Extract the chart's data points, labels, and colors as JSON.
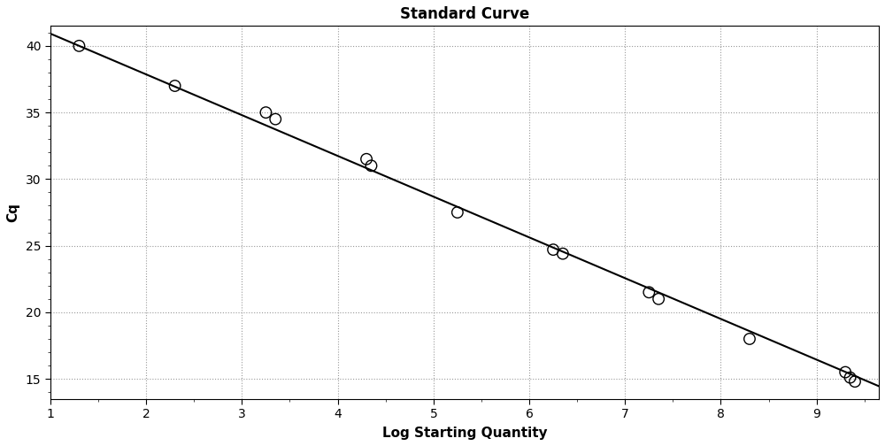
{
  "title": "Standard Curve",
  "xlabel": "Log Starting Quantity",
  "ylabel": "Cq",
  "scatter_x": [
    1.3,
    2.3,
    3.25,
    3.35,
    4.3,
    4.35,
    5.25,
    6.25,
    6.35,
    7.25,
    7.35,
    8.3,
    9.3,
    9.35,
    9.4
  ],
  "scatter_y": [
    40.0,
    37.0,
    35.0,
    34.5,
    31.5,
    31.0,
    27.5,
    24.7,
    24.4,
    21.5,
    21.0,
    18.0,
    15.5,
    15.1,
    14.8
  ],
  "line_x": [
    1.0,
    9.65
  ],
  "line_slope": -3.06,
  "line_intercept": 43.98,
  "xlim": [
    1.0,
    9.65
  ],
  "ylim": [
    13.5,
    41.5
  ],
  "xticks": [
    1,
    2,
    3,
    4,
    5,
    6,
    7,
    8,
    9
  ],
  "yticks": [
    15,
    20,
    25,
    30,
    35,
    40
  ],
  "marker_color": "black",
  "marker_size": 9,
  "marker_linewidth": 1.0,
  "line_color": "black",
  "line_width": 1.5,
  "grid_color": "#999999",
  "background_color": "#ffffff",
  "title_fontsize": 12,
  "axis_label_fontsize": 11,
  "tick_fontsize": 10
}
